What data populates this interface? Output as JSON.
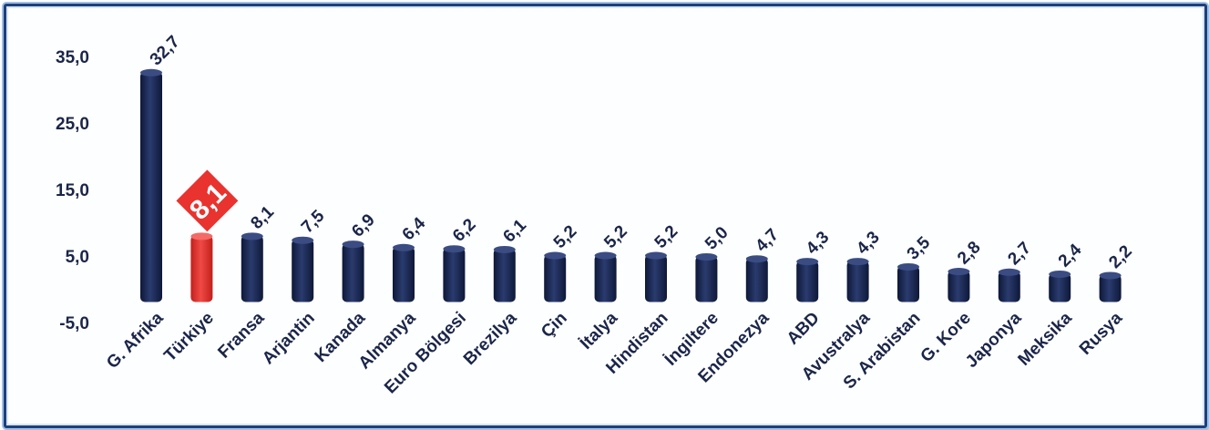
{
  "chart_data": {
    "type": "bar",
    "categories": [
      "G. Afrika",
      "Türkiye",
      "Fransa",
      "Arjantin",
      "Kanada",
      "Almanya",
      "Euro Bölgesi",
      "Brezilya",
      "Çin",
      "İtalya",
      "Hindistan",
      "İngiltere",
      "Endonezya",
      "ABD",
      "Avustralya",
      "S. Arabistan",
      "G. Kore",
      "Japonya",
      "Meksika",
      "Rusya"
    ],
    "values": [
      32.7,
      8.1,
      8.1,
      7.5,
      6.9,
      6.4,
      6.2,
      6.1,
      5.2,
      5.2,
      5.2,
      5.0,
      4.7,
      4.3,
      4.3,
      3.5,
      2.8,
      2.7,
      2.4,
      2.2
    ],
    "value_labels": [
      "32,7",
      "8,1",
      "8,1",
      "7,5",
      "6,9",
      "6,4",
      "6,2",
      "6,1",
      "5,2",
      "5,2",
      "5,2",
      "5,0",
      "4,7",
      "4,3",
      "4,3",
      "3,5",
      "2,8",
      "2,7",
      "2,4",
      "2,2"
    ],
    "yticks": [
      35,
      25,
      15,
      5,
      -5
    ],
    "ytick_labels": [
      "35,0",
      "25,0",
      "15,0",
      "5,0",
      "-5,0"
    ],
    "ylim": [
      -5,
      35
    ],
    "grid": false,
    "highlight_index": 1,
    "colors": {
      "bar": "#1b2a57",
      "highlight": "#e8332f",
      "text": "#1b2548"
    }
  }
}
